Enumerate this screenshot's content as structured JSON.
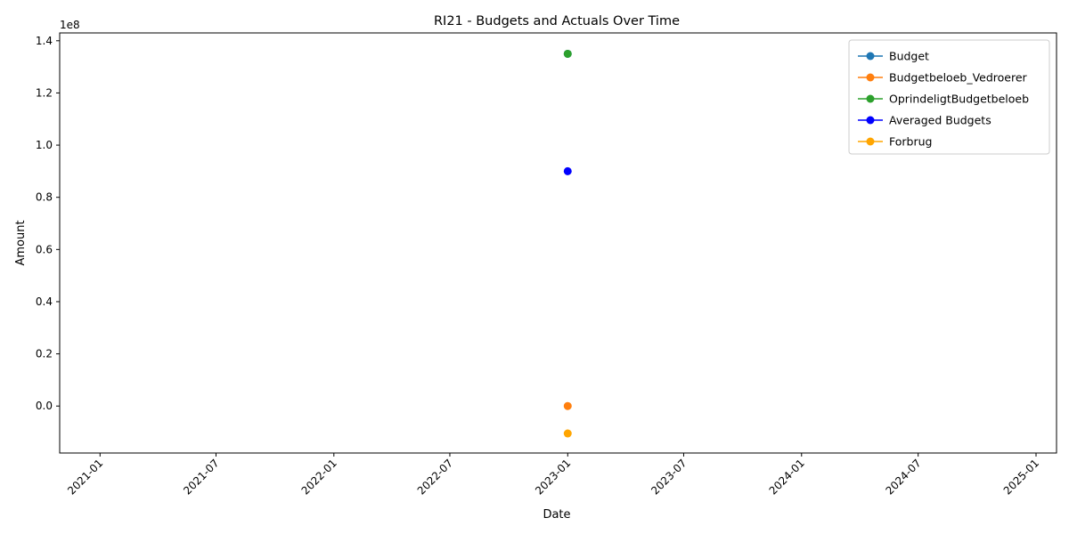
{
  "chart_data": {
    "type": "line",
    "title": "RI21 - Budgets and Actuals Over Time",
    "xlabel": "Date",
    "ylabel": "Amount",
    "y_offset_label": "1e8",
    "x_axis": {
      "kind": "date",
      "range": [
        "2020-10-30",
        "2025-02-02"
      ],
      "ticks": [
        "2021-01",
        "2021-07",
        "2022-01",
        "2022-07",
        "2023-01",
        "2023-07",
        "2024-01",
        "2024-07",
        "2025-01"
      ],
      "tick_label_rotation": 45
    },
    "y_axis": {
      "range": [
        -18000000,
        143000000
      ],
      "ticks": [
        0,
        20000000,
        40000000,
        60000000,
        80000000,
        100000000,
        120000000,
        140000000
      ],
      "tick_labels": [
        "0.0",
        "0.2",
        "0.4",
        "0.6",
        "0.8",
        "1.0",
        "1.2",
        "1.4"
      ]
    },
    "grid": false,
    "legend_position": "top-right",
    "series": [
      {
        "name": "Budget",
        "color": "#1f77b4",
        "marker": "circle",
        "points": [
          {
            "x": "2023-01-01",
            "y": 135000000
          }
        ]
      },
      {
        "name": "Budgetbeloeb_Vedroerer",
        "color": "#ff7f0e",
        "marker": "circle",
        "points": [
          {
            "x": "2023-01-01",
            "y": 0
          }
        ]
      },
      {
        "name": "OprindeligtBudgetbeloeb",
        "color": "#2ca02c",
        "marker": "circle",
        "points": [
          {
            "x": "2023-01-01",
            "y": 135000000
          }
        ]
      },
      {
        "name": "Averaged Budgets",
        "color": "#0000ff",
        "marker": "circle",
        "points": [
          {
            "x": "2023-01-01",
            "y": 90000000
          }
        ]
      },
      {
        "name": "Forbrug",
        "color": "#ffa500",
        "marker": "circle",
        "points": [
          {
            "x": "2023-01-01",
            "y": -10500000
          }
        ]
      }
    ]
  }
}
